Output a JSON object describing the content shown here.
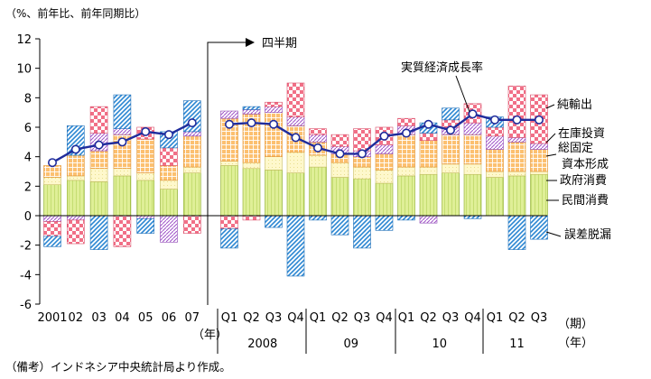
{
  "chart_data": {
    "type": "stacked-bar-with-line",
    "unit_label": "（%、前年比、前年同期比）",
    "annual_year_unit": "（年）",
    "quarter_unit": "（期）",
    "year_unit": "（年）",
    "quarterly_label": "四半期",
    "ylim": [
      -6,
      12
    ],
    "yticks": [
      "-6",
      "-4",
      "-2",
      "0",
      "2",
      "4",
      "6",
      "8",
      "10",
      "12"
    ],
    "categories": [
      "2001",
      "02",
      "03",
      "04",
      "05",
      "06",
      "07",
      "Q1",
      "Q2",
      "Q3",
      "Q4",
      "Q1",
      "Q2",
      "Q3",
      "Q4",
      "Q1",
      "Q2",
      "Q3",
      "Q4",
      "Q1",
      "Q2",
      "Q3"
    ],
    "year_groups": [
      {
        "label": "2008",
        "start": 7,
        "end": 10
      },
      {
        "label": "09",
        "start": 11,
        "end": 14
      },
      {
        "label": "10",
        "start": 15,
        "end": 18
      },
      {
        "label": "11",
        "start": 19,
        "end": 21
      }
    ],
    "series": [
      {
        "name": "民間消費",
        "key": "pc",
        "color": "#d8ec8c",
        "values": [
          2.1,
          2.4,
          2.3,
          2.7,
          2.4,
          1.8,
          2.9,
          3.4,
          3.2,
          3.1,
          2.9,
          3.3,
          2.6,
          2.5,
          2.2,
          2.7,
          2.8,
          2.9,
          2.8,
          2.6,
          2.7,
          2.8
        ]
      },
      {
        "name": "政府消費",
        "key": "gc",
        "color": "#fef6c2",
        "values": [
          0.5,
          0.3,
          0.9,
          0.5,
          0.5,
          0.6,
          0.4,
          0.3,
          0.4,
          0.9,
          1.4,
          0.8,
          1.0,
          0.8,
          0.9,
          0.6,
          0.5,
          0.6,
          0.7,
          0.4,
          0.3,
          0.2
        ]
      },
      {
        "name": "総固定資本形成",
        "key": "gfcf",
        "color": "#fbb969",
        "values": [
          0.8,
          1.4,
          1.2,
          2.3,
          2.3,
          1.0,
          2.1,
          2.9,
          3.3,
          3.0,
          1.8,
          0.9,
          0.6,
          0.7,
          1.1,
          2.2,
          1.8,
          2.0,
          2.0,
          1.5,
          2.0,
          1.5
        ]
      },
      {
        "name": "在庫投資",
        "key": "inv",
        "color": "#ae6ccd",
        "values": [
          -0.4,
          -0.3,
          1.2,
          0.4,
          -0.2,
          -1.8,
          0.3,
          0.5,
          0.3,
          0.4,
          0.6,
          0.5,
          0.5,
          0.4,
          0.6,
          0.6,
          -0.5,
          0.5,
          0.8,
          0.9,
          0.3,
          0.4
        ]
      },
      {
        "name": "純輸出",
        "key": "nx",
        "color": "#f27089",
        "values": [
          -1.0,
          -1.6,
          1.8,
          -2.1,
          0.8,
          1.2,
          -1.2,
          -0.9,
          -0.3,
          0.3,
          2.3,
          0.4,
          0.8,
          1.5,
          1.2,
          0.5,
          0.5,
          0.5,
          1.3,
          0.6,
          3.5,
          3.3
        ]
      },
      {
        "name": "誤差脱漏",
        "key": "err",
        "color": "#2e8fd6",
        "values": [
          -0.7,
          2.0,
          -2.3,
          2.3,
          -1.0,
          1.1,
          2.1,
          -1.3,
          0.2,
          -0.8,
          -4.1,
          -0.3,
          -1.3,
          -2.2,
          -1.0,
          -0.3,
          0.7,
          0.8,
          -0.2,
          0.7,
          -2.3,
          -1.6
        ]
      }
    ],
    "line": {
      "name": "実質経済成長率",
      "color": "#1f2c9c",
      "values": [
        3.6,
        4.5,
        4.8,
        5.0,
        5.7,
        5.5,
        6.3,
        6.2,
        6.3,
        6.2,
        5.3,
        4.6,
        4.2,
        4.2,
        5.4,
        5.6,
        6.2,
        5.8,
        6.9,
        6.5,
        6.5,
        6.5
      ]
    }
  },
  "note": "（備考）インドネシア中央統計局より作成。"
}
